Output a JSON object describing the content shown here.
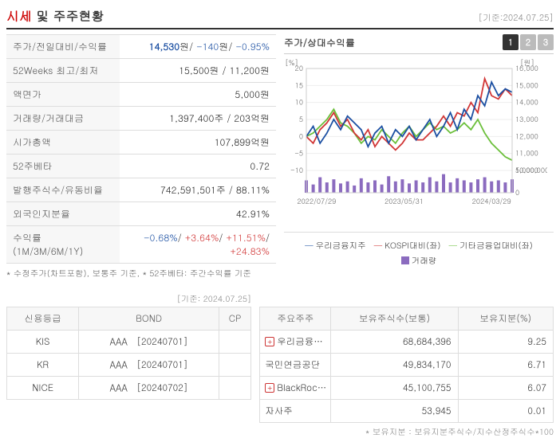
{
  "header": {
    "title_prefix": "시세",
    "title_conjunction": " 및 ",
    "title_suffix": "주주현황",
    "date_prefix": "[기준:",
    "date": "2024.07.25",
    "date_suffix": "]"
  },
  "kv_rows": [
    {
      "label": "주가/전일대비/수익률",
      "value_parts": [
        {
          "t": "14,530",
          "cls": "price-highlight"
        },
        {
          "t": "원/ "
        },
        {
          "t": "-140",
          "cls": "neg"
        },
        {
          "t": "원/ "
        },
        {
          "t": "-0.95%",
          "cls": "neg"
        }
      ]
    },
    {
      "label": "52Weeks 최고/최저",
      "value": "15,500원 / 11,200원"
    },
    {
      "label": "액면가",
      "value": "5,000원"
    },
    {
      "label": "거래량/거래대금",
      "value": "1,397,400주 / 203억원"
    },
    {
      "label": "시가총액",
      "value": "107,899억원"
    },
    {
      "label": "52주베타",
      "value": "0.72"
    },
    {
      "label": "발행주식수/유동비율",
      "value": "742,591,501주 / 88.11%"
    },
    {
      "label": "외국인지분율",
      "value": "42.91%"
    },
    {
      "label": "수익률 (1M/3M/6M/1Y)",
      "value_parts": [
        {
          "t": "-0.68%",
          "cls": "neg"
        },
        {
          "t": "/ "
        },
        {
          "t": "+3.64%",
          "cls": "pos"
        },
        {
          "t": "/ "
        },
        {
          "t": "+11.51%",
          "cls": "pos"
        },
        {
          "t": "/ "
        },
        {
          "t": "+24.83%",
          "cls": "pos"
        }
      ]
    }
  ],
  "footnote_left": "* 수정주가(차트포함), 보통주 기준, * 52주베타: 주간수익률 기준",
  "chart": {
    "title": "주가/상대수익률",
    "tabs": [
      "1",
      "2",
      "3"
    ],
    "active_tab": 0,
    "y_left": {
      "label": "[%]",
      "ticks": [
        "-10",
        "-5",
        "0",
        "5",
        "10",
        "15",
        "20"
      ],
      "min": -10,
      "max": 20
    },
    "y_right": {
      "label": "[원]",
      "ticks": [
        "10,000",
        "11,000",
        "12,000",
        "13,000",
        "14,000",
        "15,000",
        "16,000"
      ],
      "min": 10000,
      "max": 16000
    },
    "y_right_vol": {
      "ticks": [
        "0",
        "5,000,000"
      ],
      "min": 0,
      "max": 5000000
    },
    "x_ticks": [
      "2022/07/29",
      "2023/05/31",
      "2024/03/29"
    ],
    "series": {
      "blue": {
        "name": "우리금융지주",
        "color": "#1b4fa2",
        "data": [
          0,
          3,
          -2,
          1,
          5,
          2,
          6,
          4,
          2,
          -3,
          1,
          3,
          -2,
          2,
          0,
          3,
          -1,
          2,
          5,
          0,
          3,
          7,
          2,
          8,
          5,
          12,
          9,
          16,
          12,
          14,
          13
        ]
      },
      "red": {
        "name": "KOSPI대비(좌)",
        "color": "#d13636",
        "data": [
          0,
          -2,
          2,
          4,
          7,
          3,
          5,
          1,
          -1,
          2,
          -3,
          0,
          -2,
          -4,
          -2,
          1,
          -1,
          -1,
          1,
          3,
          6,
          3,
          7,
          6,
          10,
          7,
          17,
          12,
          11,
          14,
          12
        ]
      },
      "green": {
        "name": "기타금융업대비(좌)",
        "color": "#6bbf3a",
        "data": [
          0,
          1,
          3,
          5,
          8,
          4,
          3,
          1,
          -2,
          0,
          -1,
          2,
          0,
          -2,
          1,
          3,
          0,
          2,
          4,
          2,
          3,
          1,
          2,
          4,
          2,
          5,
          1,
          -2,
          -4,
          -6,
          -7
        ]
      },
      "volume": {
        "name": "거래량",
        "color": "#8b6bbf",
        "data": [
          1.2,
          0.8,
          1.5,
          1.0,
          1.3,
          0.9,
          1.1,
          0.7,
          1.4,
          1.0,
          1.2,
          0.8,
          1.6,
          1.1,
          1.3,
          0.9,
          1.2,
          1.0,
          1.5,
          1.1,
          1.8,
          1.0,
          1.4,
          1.2,
          1.0,
          1.3,
          1.5,
          1.1,
          1.2,
          1.0,
          1.3
        ]
      }
    }
  },
  "credit": {
    "date_prefix": "[기준: ",
    "date": "2024.07.25",
    "date_suffix": "]",
    "headers": [
      "신용등급",
      "BOND",
      "CP"
    ],
    "rows": [
      [
        "KIS",
        "AAA　[20240701]",
        ""
      ],
      [
        "KR",
        "AAA　[20240701]",
        ""
      ],
      [
        "NICE",
        "AAA　[20240702]",
        ""
      ]
    ]
  },
  "shareholders": {
    "headers": [
      "주요주주",
      "보유주식수(보통)",
      "보유지분(%)"
    ],
    "rows": [
      {
        "expand": true,
        "name": "우리금융지주우리 사주…",
        "shares": "68,684,396",
        "pct": "9.25"
      },
      {
        "expand": false,
        "name": "국민연금공단",
        "shares": "49,834,170",
        "pct": "6.71"
      },
      {
        "expand": true,
        "name": "BlackRock Fund Advis…",
        "shares": "45,100,755",
        "pct": "6.07"
      },
      {
        "expand": false,
        "name": "자사주",
        "shares": "53,945",
        "pct": "0.01"
      }
    ],
    "footnote": "* 보유지분 : 보유지분주식수/지수산정주식수*100"
  }
}
